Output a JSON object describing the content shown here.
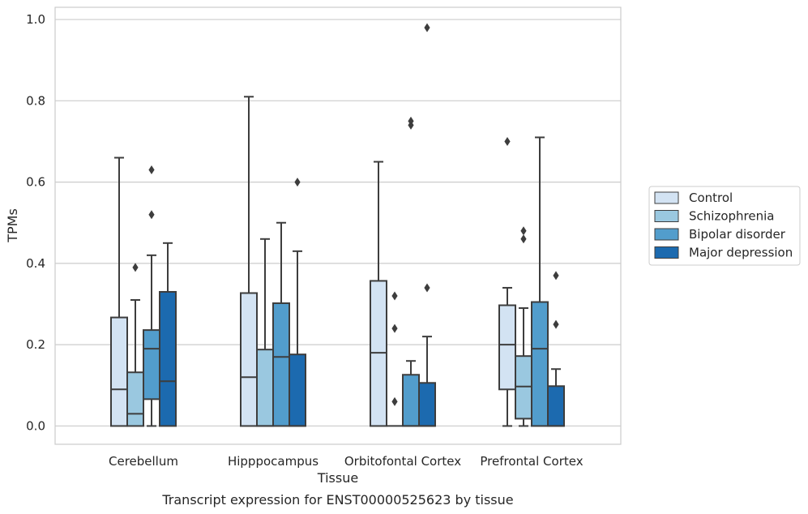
{
  "chart_data": {
    "type": "box",
    "title": "",
    "caption": "Transcript expression for ENST00000525623 by tissue",
    "xlabel": "Tissue",
    "ylabel": "TPMs",
    "ylim": [
      -0.045,
      1.03
    ],
    "yticks": [
      "0.0",
      "0.2",
      "0.4",
      "0.6",
      "0.8",
      "1.0"
    ],
    "ytick_values": [
      0.0,
      0.2,
      0.4,
      0.6,
      0.8,
      1.0
    ],
    "grid": true,
    "legend_position": "right",
    "categories": [
      "Cerebellum",
      "Hipppocampus",
      "Orbitofontal Cortex",
      "Prefrontal Cortex"
    ],
    "series": [
      {
        "name": "Control",
        "color": "#d3e3f3",
        "boxes": [
          {
            "min": 0.0,
            "q1": 0.0,
            "median": 0.09,
            "q3": 0.267,
            "max": 0.66,
            "outliers": []
          },
          {
            "min": 0.0,
            "q1": 0.0,
            "median": 0.12,
            "q3": 0.327,
            "max": 0.81,
            "outliers": []
          },
          {
            "min": 0.0,
            "q1": 0.0,
            "median": 0.18,
            "q3": 0.357,
            "max": 0.65,
            "outliers": []
          },
          {
            "min": 0.0,
            "q1": 0.09,
            "median": 0.2,
            "q3": 0.297,
            "max": 0.34,
            "outliers": [
              0.7
            ]
          }
        ]
      },
      {
        "name": "Schizophrenia",
        "color": "#9ac8e0",
        "boxes": [
          {
            "min": 0.0,
            "q1": 0.0,
            "median": 0.03,
            "q3": 0.132,
            "max": 0.31,
            "outliers": [
              0.39
            ]
          },
          {
            "min": 0.0,
            "q1": 0.0,
            "median": 0.0,
            "q3": 0.188,
            "max": 0.46,
            "outliers": []
          },
          {
            "min": 0.0,
            "q1": 0.0,
            "median": 0.0,
            "q3": 0.0,
            "max": 0.0,
            "outliers": [
              0.06,
              0.24,
              0.32
            ]
          },
          {
            "min": 0.0,
            "q1": 0.018,
            "median": 0.097,
            "q3": 0.172,
            "max": 0.29,
            "outliers": [
              0.46,
              0.48
            ]
          }
        ]
      },
      {
        "name": "Bipolar disorder",
        "color": "#529dcc",
        "boxes": [
          {
            "min": 0.0,
            "q1": 0.066,
            "median": 0.19,
            "q3": 0.236,
            "max": 0.42,
            "outliers": [
              0.52,
              0.63
            ]
          },
          {
            "min": 0.0,
            "q1": 0.0,
            "median": 0.17,
            "q3": 0.302,
            "max": 0.5,
            "outliers": []
          },
          {
            "min": 0.0,
            "q1": 0.0,
            "median": 0.0,
            "q3": 0.126,
            "max": 0.16,
            "outliers": [
              0.74,
              0.75
            ]
          },
          {
            "min": 0.0,
            "q1": 0.0,
            "median": 0.19,
            "q3": 0.305,
            "max": 0.71,
            "outliers": []
          }
        ]
      },
      {
        "name": "Major depression",
        "color": "#1c6aaf",
        "boxes": [
          {
            "min": 0.0,
            "q1": 0.0,
            "median": 0.11,
            "q3": 0.33,
            "max": 0.45,
            "outliers": []
          },
          {
            "min": 0.0,
            "q1": 0.0,
            "median": 0.0,
            "q3": 0.176,
            "max": 0.43,
            "outliers": [
              0.6
            ]
          },
          {
            "min": 0.0,
            "q1": 0.0,
            "median": 0.0,
            "q3": 0.106,
            "max": 0.22,
            "outliers": [
              0.34,
              0.98
            ]
          },
          {
            "min": 0.0,
            "q1": 0.0,
            "median": 0.0,
            "q3": 0.098,
            "max": 0.14,
            "outliers": [
              0.25,
              0.37
            ]
          }
        ]
      }
    ]
  }
}
